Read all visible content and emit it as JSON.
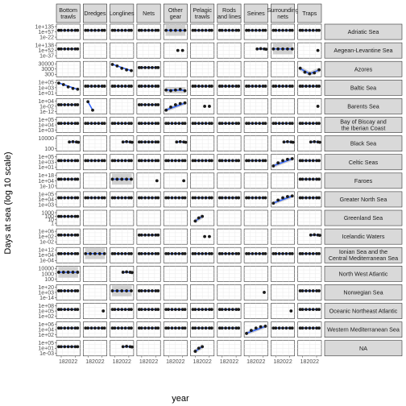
{
  "chart_data": {
    "type": "scatter",
    "xlabel": "year",
    "ylabel": "Days at sea (log 10 scale)",
    "x_tick_labels": [
      "18",
      "2022"
    ],
    "y_scale": "log10",
    "trend": "smooth line with confidence ribbon",
    "colors": {
      "points": "#1a1a1a",
      "line": "#3366ff",
      "ribbon": "#b3b3b3",
      "strip": "#d9d9d9",
      "grid": "#ebebeb"
    },
    "columns": [
      "Bottom trawls",
      "Dredges",
      "Longlines",
      "Nets",
      "Other gear",
      "Pelagic trawls",
      "Rods and lines",
      "Seines",
      "Surrounding nets",
      "Traps"
    ],
    "rows": [
      {
        "name": "Adriatic Sea",
        "ticks": [
          "1e+135",
          "1e+57",
          "1e-22"
        ],
        "cells": [
          "full",
          "full",
          "full",
          "full",
          "wide",
          "full",
          "full",
          "full",
          "full",
          "full"
        ]
      },
      {
        "name": "Aegean-Levantine Sea",
        "ticks": [
          "1e+138",
          "1e+52",
          "1e-37"
        ],
        "cells": [
          "full",
          "",
          "",
          "",
          "pair",
          "",
          "",
          "tail",
          "wide",
          "dot"
        ]
      },
      {
        "name": "Azores",
        "ticks": [
          "30000",
          "3000",
          "300"
        ],
        "cells": [
          "",
          "",
          "slope",
          "full",
          "",
          "",
          "",
          "",
          "",
          "dip"
        ]
      },
      {
        "name": "Baltic Sea",
        "ticks": [
          "1e+05",
          "1e+03",
          "1e+01"
        ],
        "cells": [
          "slope",
          "full",
          "full",
          "full",
          "low",
          "full",
          "full",
          "full",
          "full",
          "full"
        ]
      },
      {
        "name": "Barents Sea",
        "ticks": [
          "1e+04",
          "1e-02",
          "1e-12"
        ],
        "cells": [
          "full",
          "drop",
          "",
          "full",
          "rise",
          "pair",
          "",
          "",
          "",
          "dot"
        ]
      },
      {
        "name": "Bay of Biscay and the Iberian Coast",
        "ticks": [
          "1e+05",
          "1e+04",
          "1e+03"
        ],
        "cells": [
          "full",
          "full",
          "full",
          "full",
          "full",
          "full",
          "full",
          "full",
          "full",
          "full"
        ]
      },
      {
        "name": "Black Sea",
        "ticks": [
          "10000",
          "100"
        ],
        "cells": [
          "tail",
          "",
          "tail",
          "full",
          "tail",
          "",
          "",
          "",
          "tail",
          "tail"
        ]
      },
      {
        "name": "Celtic Seas",
        "ticks": [
          "1e+05",
          "1e+03",
          "1e+01"
        ],
        "cells": [
          "full",
          "full",
          "full",
          "full",
          "full",
          "full",
          "full",
          "full",
          "rise",
          "full"
        ]
      },
      {
        "name": "Faroes",
        "ticks": [
          "1e+18",
          "1e+04",
          "1e-10"
        ],
        "cells": [
          "full",
          "",
          "wide",
          "dot",
          "dot",
          "",
          "",
          "",
          "",
          "full"
        ]
      },
      {
        "name": "Greater North Sea",
        "ticks": [
          "1e+05",
          "1e+04",
          "1e+03"
        ],
        "cells": [
          "full",
          "full",
          "full",
          "full",
          "full",
          "full",
          "full",
          "full",
          "rise",
          "full"
        ]
      },
      {
        "name": "Greenland Sea",
        "ticks": [
          "1000",
          "100",
          "10",
          "1"
        ],
        "cells": [
          "full",
          "",
          "",
          "",
          "",
          "short",
          "",
          "",
          "",
          ""
        ]
      },
      {
        "name": "Icelandic Waters",
        "ticks": [
          "1e+06",
          "1e+02",
          "1e-02"
        ],
        "cells": [
          "full",
          "",
          "",
          "full",
          "",
          "pair",
          "",
          "",
          "",
          "tail"
        ]
      },
      {
        "name": "Ionian Sea and the Central Mediterranean Sea",
        "ticks": [
          "1e+12",
          "1e+04",
          "1e-04"
        ],
        "cells": [
          "full",
          "wide",
          "full",
          "full",
          "full",
          "full",
          "full",
          "full",
          "full",
          "full"
        ]
      },
      {
        "name": "North West Atlantic",
        "ticks": [
          "10000",
          "1000",
          "100"
        ],
        "cells": [
          "wide",
          "",
          "tail",
          "",
          "",
          "",
          "",
          "",
          "",
          ""
        ]
      },
      {
        "name": "Norwegian Sea",
        "ticks": [
          "1e+20",
          "1e+03",
          "1e-14"
        ],
        "cells": [
          "full",
          "",
          "wide",
          "full",
          "",
          "",
          "",
          "dot",
          "",
          "full"
        ]
      },
      {
        "name": "Oceanic Northeast Atlantic",
        "ticks": [
          "1e+08",
          "1e+05",
          "1e+02"
        ],
        "cells": [
          "full",
          "dot",
          "full",
          "full",
          "full",
          "full",
          "full",
          "",
          "dot",
          "full"
        ]
      },
      {
        "name": "Western Mediterranean Sea",
        "ticks": [
          "1e+06",
          "1e+04",
          "1e+02"
        ],
        "cells": [
          "full",
          "full",
          "full",
          "full",
          "full",
          "full",
          "full",
          "rise",
          "full",
          "full"
        ]
      },
      {
        "name": "NA",
        "ticks": [
          "1e+05",
          "1e+01",
          "1e-03"
        ],
        "cells": [
          "full",
          "",
          "tail",
          "",
          "",
          "short",
          "",
          "",
          "",
          ""
        ]
      }
    ]
  }
}
